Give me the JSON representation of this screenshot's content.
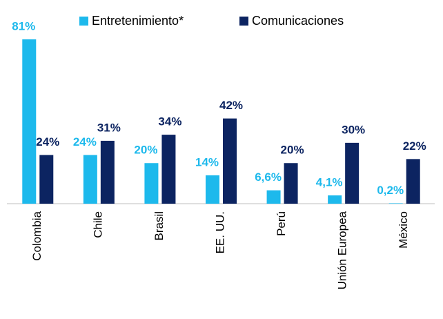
{
  "chart_data": {
    "type": "bar",
    "categories": [
      "Colombia",
      "Chile",
      "Brasil",
      "EE. UU.",
      "Perú",
      "Unión Europea",
      "México"
    ],
    "series": [
      {
        "name": "Entretenimiento*",
        "color": "#1db9ec",
        "values": [
          81,
          24,
          20,
          14,
          6.6,
          4.1,
          0.2
        ],
        "value_labels": [
          "81%",
          "24%",
          "20%",
          "14%",
          "6,6%",
          "4,1%",
          "0,2%"
        ]
      },
      {
        "name": "Comunicaciones",
        "color": "#0c2461",
        "values": [
          24,
          31,
          34,
          42,
          20,
          30,
          22
        ],
        "value_labels": [
          "24%",
          "31%",
          "34%",
          "42%",
          "20%",
          "30%",
          "22%"
        ]
      }
    ],
    "legend": "top"
  }
}
